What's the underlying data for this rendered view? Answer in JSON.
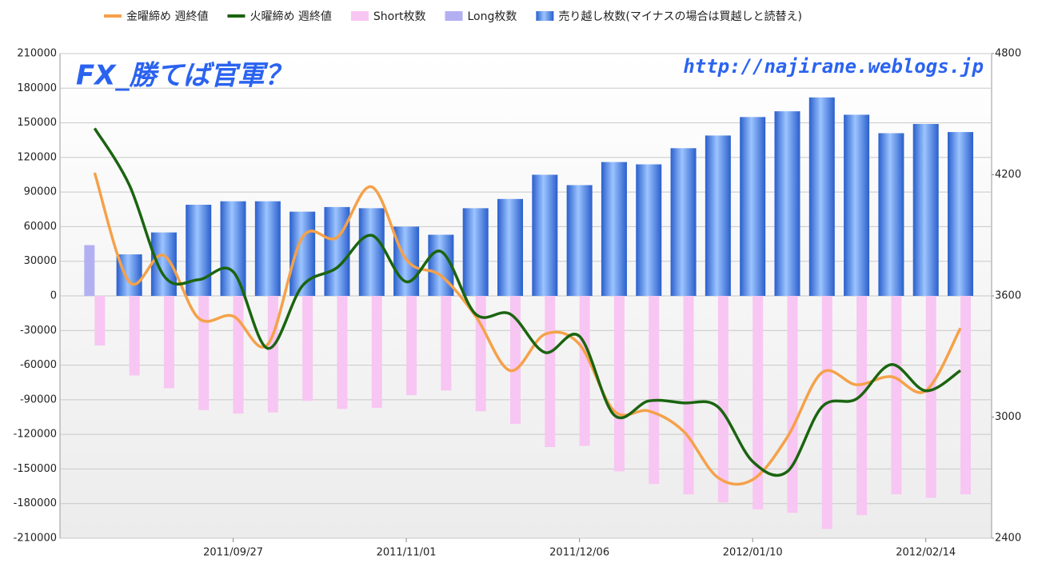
{
  "chart_data": {
    "type": "bar-line",
    "annotations": [
      "FX_勝てば官軍？",
      "http://najirane.weblogs.jp"
    ],
    "categories": [
      null,
      null,
      null,
      null,
      "2011/09/27",
      null,
      null,
      null,
      null,
      "2011/11/01",
      null,
      null,
      null,
      null,
      "2011/12/06",
      null,
      null,
      null,
      null,
      "2012/01/10",
      null,
      null,
      null,
      null,
      "2012/02/14",
      null
    ],
    "series": [
      {
        "name": "金曜締め 週終値",
        "color": "#f5a14a",
        "kind": "line",
        "axis": "y2",
        "values": [
          4210,
          3670,
          3800,
          3490,
          3500,
          3360,
          3890,
          3890,
          4140,
          3780,
          3700,
          3500,
          3230,
          3410,
          3360,
          3030,
          3030,
          2930,
          2700,
          2690,
          2900,
          3220,
          3160,
          3200,
          3130,
          3440
        ]
      },
      {
        "name": "火曜締め 週終値",
        "color": "#1b6410",
        "kind": "line",
        "axis": "y2",
        "values": [
          4430,
          4150,
          3700,
          3680,
          3720,
          3340,
          3650,
          3740,
          3900,
          3670,
          3820,
          3510,
          3510,
          3320,
          3400,
          3010,
          3080,
          3070,
          3050,
          2780,
          2730,
          3050,
          3090,
          3260,
          3130,
          3230
        ]
      },
      {
        "name": "Short枚数",
        "color": "#f8c6f2",
        "kind": "short",
        "values": [
          -43000,
          -69000,
          -80000,
          -99000,
          -102000,
          -101000,
          -91000,
          -98000,
          -97000,
          -86000,
          -82000,
          -100000,
          -111000,
          -131000,
          -130000,
          -152000,
          -163000,
          -172000,
          -179000,
          -185000,
          -188000,
          -202000,
          -190000,
          -172000,
          -175000,
          -172000
        ]
      },
      {
        "name": "Long枚数",
        "color": "#b3b0f2",
        "kind": "long",
        "values": [
          44000,
          33000,
          28000,
          15000,
          18000,
          18000,
          17000,
          15000,
          22000,
          13000,
          13000,
          24000,
          26000,
          28000,
          35000,
          36000,
          49000,
          45000,
          40000,
          30000,
          29000,
          32000,
          33000,
          33000,
          27000,
          30000
        ]
      },
      {
        "name": "売り越し枚数(マイナスの場合は買越しと読替え)",
        "color": "#3b7be2",
        "kind": "net",
        "values": [
          0,
          36000,
          55000,
          79000,
          82000,
          82000,
          73000,
          77000,
          76000,
          60000,
          53000,
          76000,
          84000,
          105000,
          96000,
          116000,
          114000,
          128000,
          139000,
          155000,
          160000,
          172000,
          157000,
          141000,
          149000,
          142000
        ]
      }
    ],
    "ylim": [
      -210000,
      210000
    ],
    "yticks": [
      -210000,
      -180000,
      -150000,
      -120000,
      -90000,
      -60000,
      -30000,
      0,
      30000,
      60000,
      90000,
      120000,
      150000,
      180000,
      210000
    ],
    "y2lim": [
      2400,
      4800
    ],
    "y2ticks": [
      2400,
      3000,
      3600,
      4200,
      4800
    ],
    "grid": true
  }
}
